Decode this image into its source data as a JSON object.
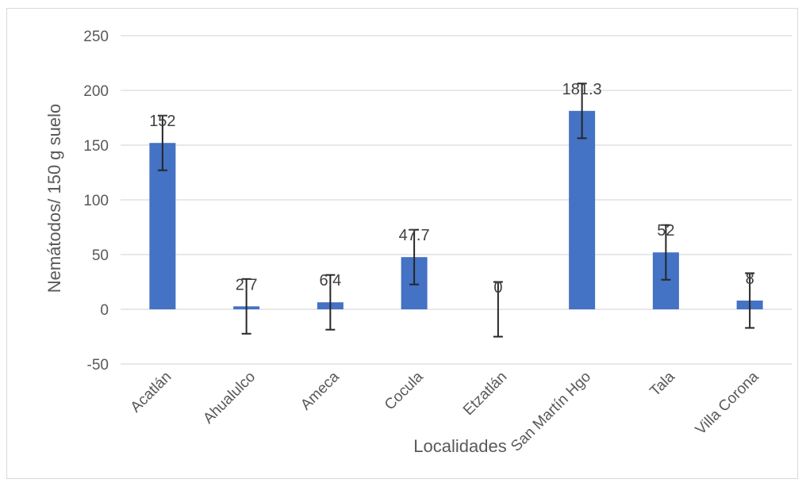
{
  "chart_data": {
    "type": "bar",
    "title": "",
    "xlabel": "Localidades",
    "ylabel": "Nemátodos/ 150 g suelo",
    "ylim": [
      -50,
      250
    ],
    "yticks": [
      -50,
      0,
      50,
      100,
      150,
      200,
      250
    ],
    "grid": true,
    "legend": "none",
    "categories": [
      "Acatlán",
      "Ahualulco",
      "Ameca",
      "Cocula",
      "Etzatlán",
      "San Martín Hgo",
      "Tala",
      "Villa Corona"
    ],
    "values": [
      152,
      2.7,
      6.4,
      47.7,
      0,
      181.3,
      52,
      8
    ],
    "data_labels": [
      "152",
      "2.7",
      "6.4",
      "47.7",
      "0",
      "181.3",
      "52",
      "8"
    ],
    "error": 25,
    "bar_color": "#4472c4",
    "error_color": "#262626",
    "grid_color": "#d9d9d9"
  }
}
